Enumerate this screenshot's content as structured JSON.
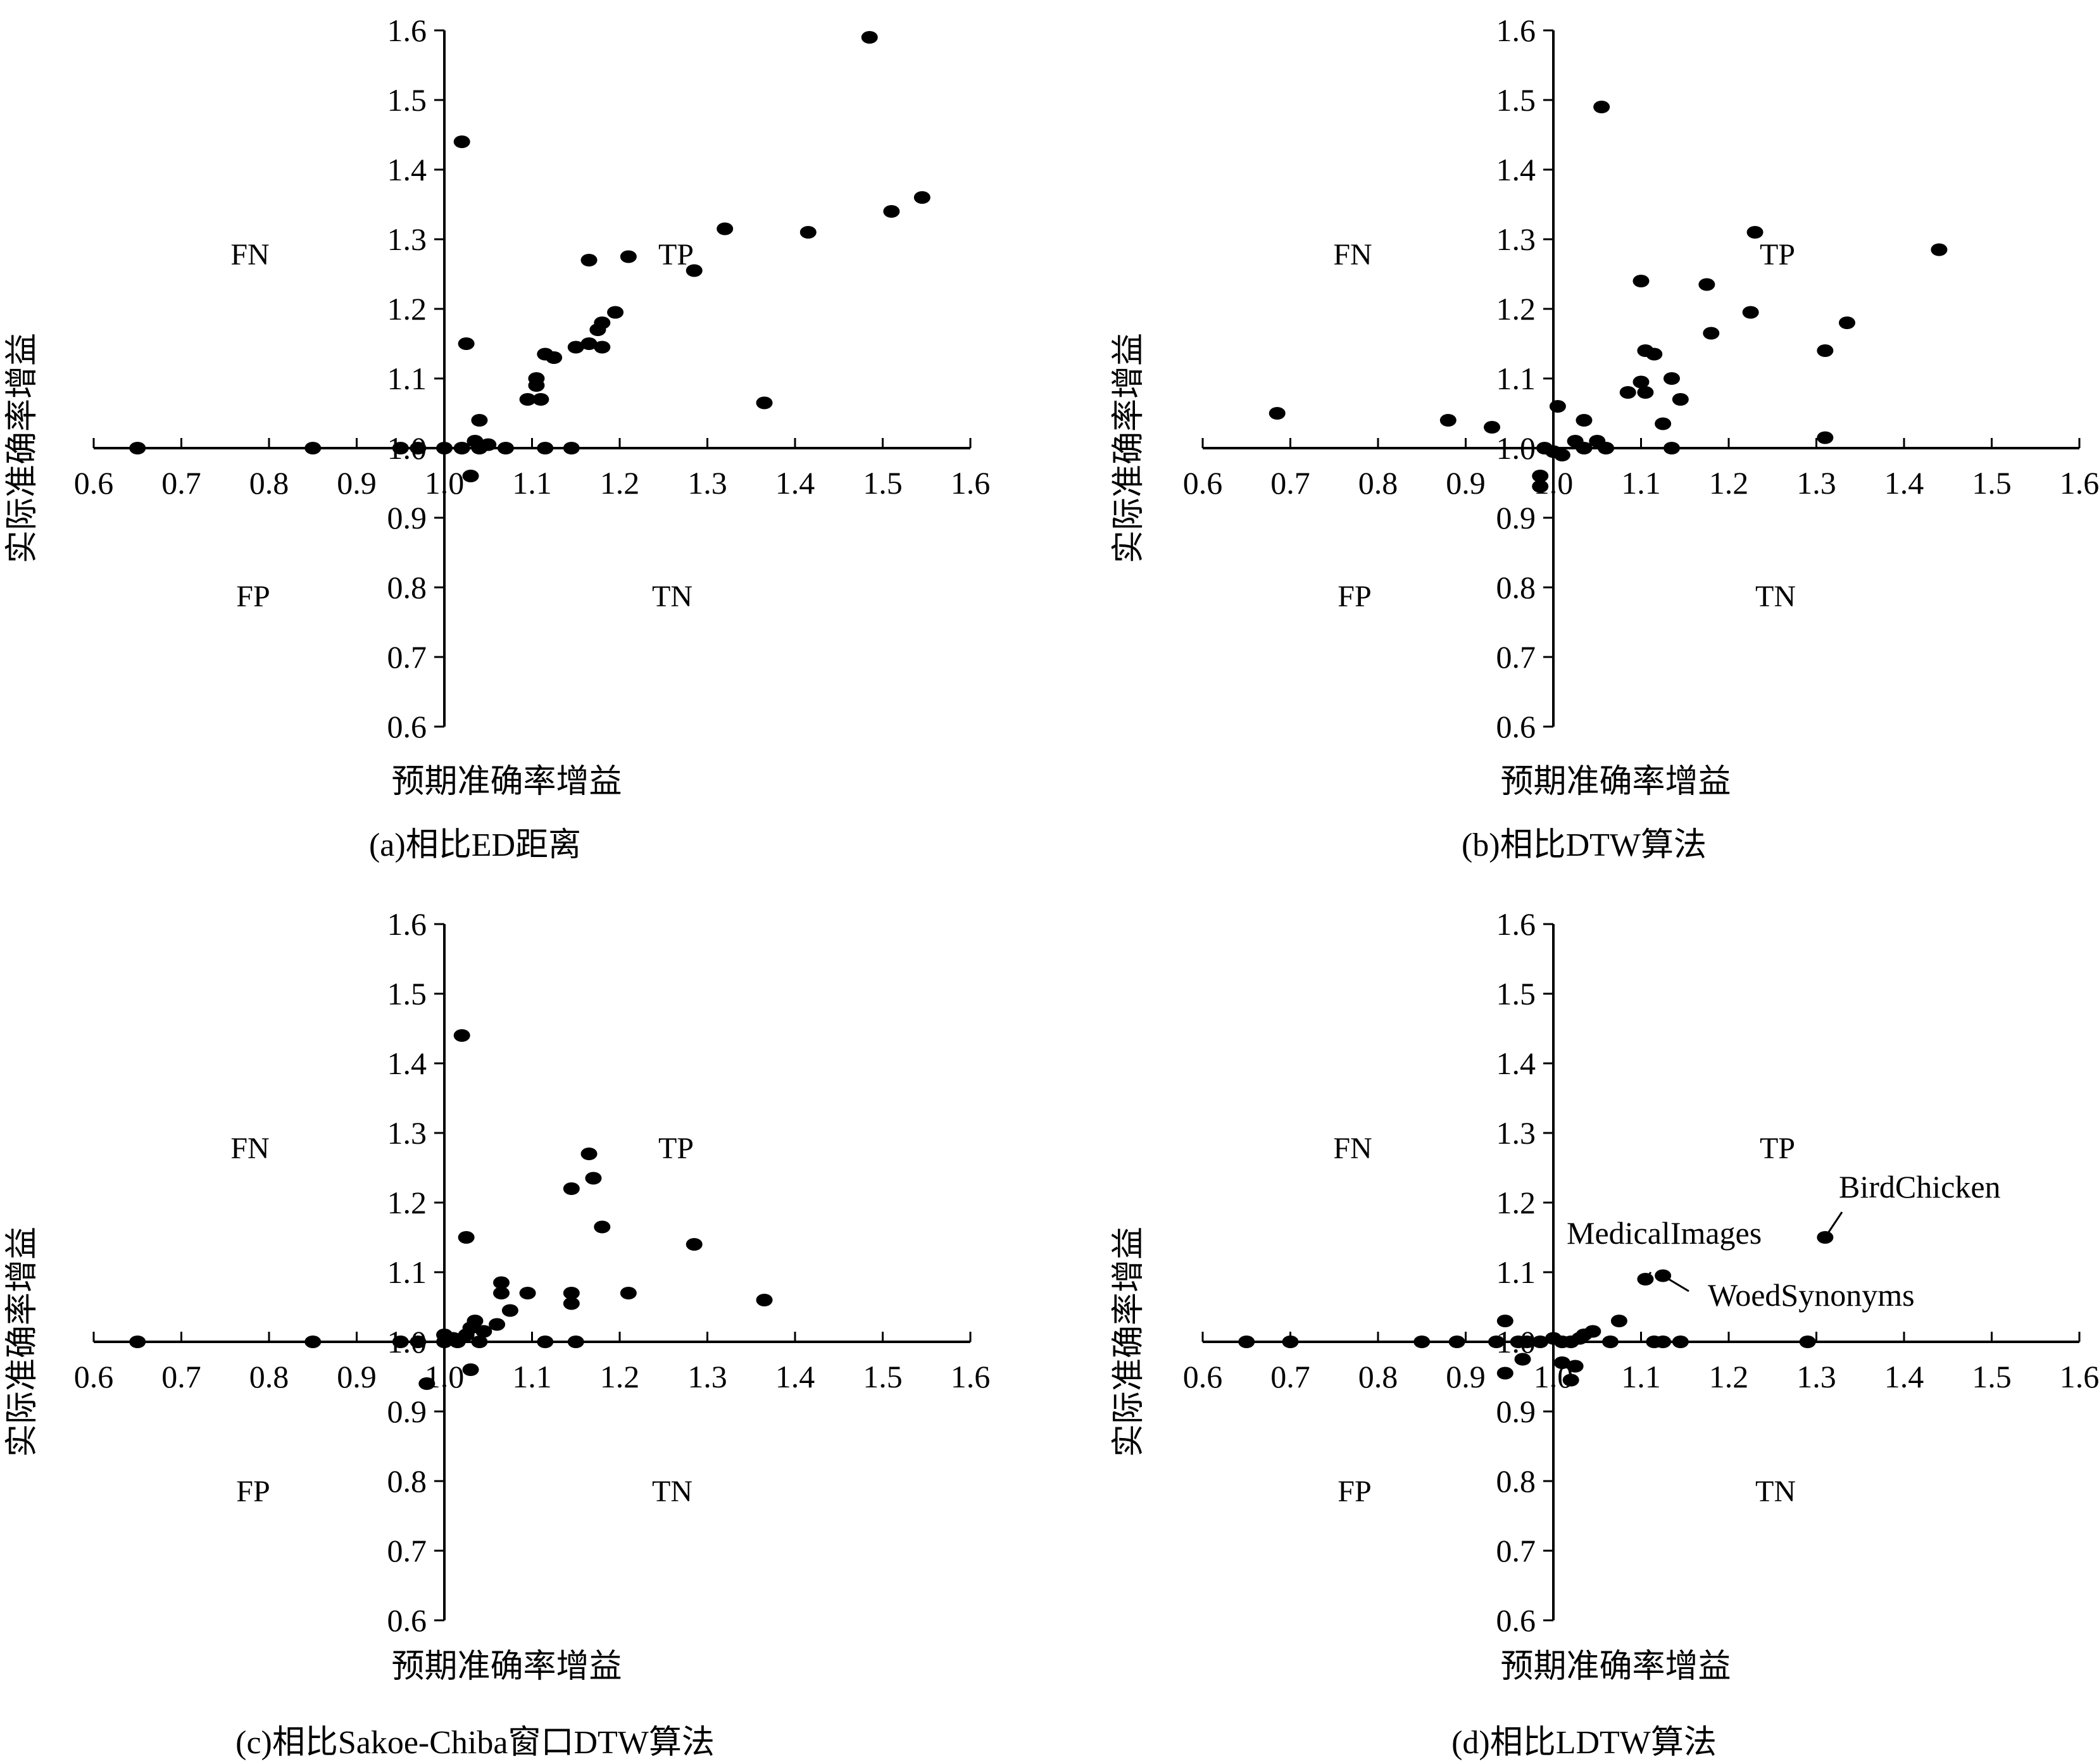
{
  "chart_data": [
    {
      "type": "scatter",
      "caption": "(a)相比ED距离",
      "xlabel": "预期准确率增益",
      "ylabel": "实际准确率增益",
      "xlim": [
        0.6,
        1.6
      ],
      "ylim": [
        0.6,
        1.6
      ],
      "cross_at": [
        1.0,
        1.0
      ],
      "x_ticks": [
        "0.6",
        "0.7",
        "0.8",
        "0.9",
        "1.0",
        "1.1",
        "1.2",
        "1.3",
        "1.4",
        "1.5",
        "1.6"
      ],
      "y_ticks": [
        "1.6",
        "1.5",
        "1.4",
        "1.3",
        "1.2",
        "1.1",
        "1.0",
        "0.9",
        "0.8",
        "0.7",
        "0.6"
      ],
      "quadrants": {
        "FN": "FN",
        "TP": "TP",
        "FP": "FP",
        "TN": "TN"
      },
      "points": [
        [
          0.65,
          1.0
        ],
        [
          0.85,
          1.0
        ],
        [
          0.95,
          1.0
        ],
        [
          0.97,
          1.0
        ],
        [
          1.0,
          1.0
        ],
        [
          1.02,
          1.0
        ],
        [
          1.02,
          1.44
        ],
        [
          1.025,
          1.15
        ],
        [
          1.03,
          0.96
        ],
        [
          1.035,
          1.01
        ],
        [
          1.04,
          1.0
        ],
        [
          1.04,
          1.04
        ],
        [
          1.05,
          1.005
        ],
        [
          1.07,
          1.0
        ],
        [
          1.095,
          1.07
        ],
        [
          1.105,
          1.09
        ],
        [
          1.105,
          1.1
        ],
        [
          1.11,
          1.07
        ],
        [
          1.115,
          1.135
        ],
        [
          1.115,
          1.0
        ],
        [
          1.125,
          1.13
        ],
        [
          1.145,
          1.0
        ],
        [
          1.15,
          1.145
        ],
        [
          1.165,
          1.15
        ],
        [
          1.165,
          1.27
        ],
        [
          1.175,
          1.17
        ],
        [
          1.18,
          1.18
        ],
        [
          1.18,
          1.145
        ],
        [
          1.195,
          1.195
        ],
        [
          1.21,
          1.275
        ],
        [
          1.285,
          1.255
        ],
        [
          1.32,
          1.315
        ],
        [
          1.365,
          1.065
        ],
        [
          1.415,
          1.31
        ],
        [
          1.485,
          1.59
        ],
        [
          1.51,
          1.34
        ],
        [
          1.545,
          1.36
        ]
      ]
    },
    {
      "type": "scatter",
      "caption": "(b)相比DTW算法",
      "xlabel": "预期准确率增益",
      "ylabel": "实际准确率增益",
      "xlim": [
        0.6,
        1.6
      ],
      "ylim": [
        0.6,
        1.6
      ],
      "cross_at": [
        1.0,
        1.0
      ],
      "x_ticks": [
        "0.6",
        "0.7",
        "0.8",
        "0.9",
        "1.0",
        "1.1",
        "1.2",
        "1.3",
        "1.4",
        "1.5",
        "1.6"
      ],
      "y_ticks": [
        "1.6",
        "1.5",
        "1.4",
        "1.3",
        "1.2",
        "1.1",
        "1.0",
        "0.9",
        "0.8",
        "0.7",
        "0.6"
      ],
      "quadrants": {
        "FN": "FN",
        "TP": "TP",
        "FP": "FP",
        "TN": "TN"
      },
      "points": [
        [
          0.685,
          1.05
        ],
        [
          0.88,
          1.04
        ],
        [
          0.93,
          1.03
        ],
        [
          0.985,
          0.945
        ],
        [
          0.985,
          0.96
        ],
        [
          0.99,
          1.0
        ],
        [
          1.0,
          0.995
        ],
        [
          1.005,
          1.06
        ],
        [
          1.01,
          0.99
        ],
        [
          1.025,
          1.01
        ],
        [
          1.035,
          1.04
        ],
        [
          1.035,
          1.0
        ],
        [
          1.05,
          1.01
        ],
        [
          1.055,
          1.49
        ],
        [
          1.06,
          1.0
        ],
        [
          1.085,
          1.08
        ],
        [
          1.1,
          1.24
        ],
        [
          1.1,
          1.095
        ],
        [
          1.105,
          1.08
        ],
        [
          1.105,
          1.14
        ],
        [
          1.115,
          1.135
        ],
        [
          1.125,
          1.035
        ],
        [
          1.135,
          1.1
        ],
        [
          1.135,
          1.0
        ],
        [
          1.145,
          1.07
        ],
        [
          1.175,
          1.235
        ],
        [
          1.18,
          1.165
        ],
        [
          1.225,
          1.195
        ],
        [
          1.23,
          1.31
        ],
        [
          1.31,
          1.14
        ],
        [
          1.31,
          1.015
        ],
        [
          1.335,
          1.18
        ],
        [
          1.44,
          1.285
        ]
      ]
    },
    {
      "type": "scatter",
      "caption": "(c)相比Sakoe-Chiba窗口DTW算法",
      "xlabel": "预期准确率增益",
      "ylabel": "实际准确率增益",
      "xlim": [
        0.6,
        1.6
      ],
      "ylim": [
        0.6,
        1.6
      ],
      "cross_at": [
        1.0,
        1.0
      ],
      "x_ticks": [
        "0.6",
        "0.7",
        "0.8",
        "0.9",
        "1.0",
        "1.1",
        "1.2",
        "1.3",
        "1.4",
        "1.5",
        "1.6"
      ],
      "y_ticks": [
        "1.6",
        "1.5",
        "1.4",
        "1.3",
        "1.2",
        "1.1",
        "1.0",
        "0.9",
        "0.8",
        "0.7",
        "0.6"
      ],
      "quadrants": {
        "FN": "FN",
        "TP": "TP",
        "FP": "FP",
        "TN": "TN"
      },
      "points": [
        [
          0.65,
          1.0
        ],
        [
          0.85,
          1.0
        ],
        [
          0.95,
          1.0
        ],
        [
          0.97,
          1.0
        ],
        [
          0.98,
          0.94
        ],
        [
          1.0,
          1.0
        ],
        [
          1.0,
          1.01
        ],
        [
          1.01,
          1.005
        ],
        [
          1.015,
          1.0
        ],
        [
          1.02,
          1.44
        ],
        [
          1.025,
          1.15
        ],
        [
          1.025,
          1.01
        ],
        [
          1.03,
          0.96
        ],
        [
          1.03,
          1.02
        ],
        [
          1.035,
          1.03
        ],
        [
          1.04,
          1.0
        ],
        [
          1.045,
          1.015
        ],
        [
          1.06,
          1.025
        ],
        [
          1.065,
          1.085
        ],
        [
          1.065,
          1.07
        ],
        [
          1.075,
          1.045
        ],
        [
          1.095,
          1.07
        ],
        [
          1.115,
          1.0
        ],
        [
          1.145,
          1.22
        ],
        [
          1.145,
          1.07
        ],
        [
          1.145,
          1.055
        ],
        [
          1.15,
          1.0
        ],
        [
          1.165,
          1.27
        ],
        [
          1.17,
          1.235
        ],
        [
          1.18,
          1.165
        ],
        [
          1.21,
          1.07
        ],
        [
          1.285,
          1.14
        ],
        [
          1.365,
          1.06
        ]
      ]
    },
    {
      "type": "scatter",
      "caption": "(d)相比LDTW算法",
      "xlabel": "预期准确率增益",
      "ylabel": "实际准确率增益",
      "xlim": [
        0.6,
        1.6
      ],
      "ylim": [
        0.6,
        1.6
      ],
      "cross_at": [
        1.0,
        1.0
      ],
      "x_ticks": [
        "0.6",
        "0.7",
        "0.8",
        "0.9",
        "1.0",
        "1.1",
        "1.2",
        "1.3",
        "1.4",
        "1.5",
        "1.6"
      ],
      "y_ticks": [
        "1.6",
        "1.5",
        "1.4",
        "1.3",
        "1.2",
        "1.1",
        "1.0",
        "0.9",
        "0.8",
        "0.7",
        "0.6"
      ],
      "quadrants": {
        "FN": "FN",
        "TP": "TP",
        "FP": "FP",
        "TN": "TN"
      },
      "points": [
        [
          0.65,
          1.0
        ],
        [
          0.7,
          1.0
        ],
        [
          0.85,
          1.0
        ],
        [
          0.89,
          1.0
        ],
        [
          0.935,
          1.0
        ],
        [
          0.945,
          0.955
        ],
        [
          0.945,
          1.03
        ],
        [
          0.96,
          1.0
        ],
        [
          0.965,
          0.975
        ],
        [
          0.97,
          1.0
        ],
        [
          0.985,
          1.0
        ],
        [
          1.0,
          1.005
        ],
        [
          1.01,
          1.0
        ],
        [
          1.01,
          0.97
        ],
        [
          1.02,
          0.945
        ],
        [
          1.02,
          1.0
        ],
        [
          1.025,
          0.965
        ],
        [
          1.03,
          1.005
        ],
        [
          1.035,
          1.01
        ],
        [
          1.045,
          1.015
        ],
        [
          1.065,
          1.0
        ],
        [
          1.075,
          1.03
        ],
        [
          1.105,
          1.09
        ],
        [
          1.115,
          1.0
        ],
        [
          1.125,
          1.0
        ],
        [
          1.125,
          1.095
        ],
        [
          1.145,
          1.0
        ],
        [
          1.29,
          1.0
        ],
        [
          1.31,
          1.15
        ]
      ],
      "annotations": [
        {
          "text": "MedicalImages",
          "x": 1.105,
          "y": 1.09
        },
        {
          "text": "BirdChicken",
          "x": 1.31,
          "y": 1.15
        },
        {
          "text": "WoedSynonyms",
          "x": 1.125,
          "y": 1.095
        }
      ]
    }
  ]
}
